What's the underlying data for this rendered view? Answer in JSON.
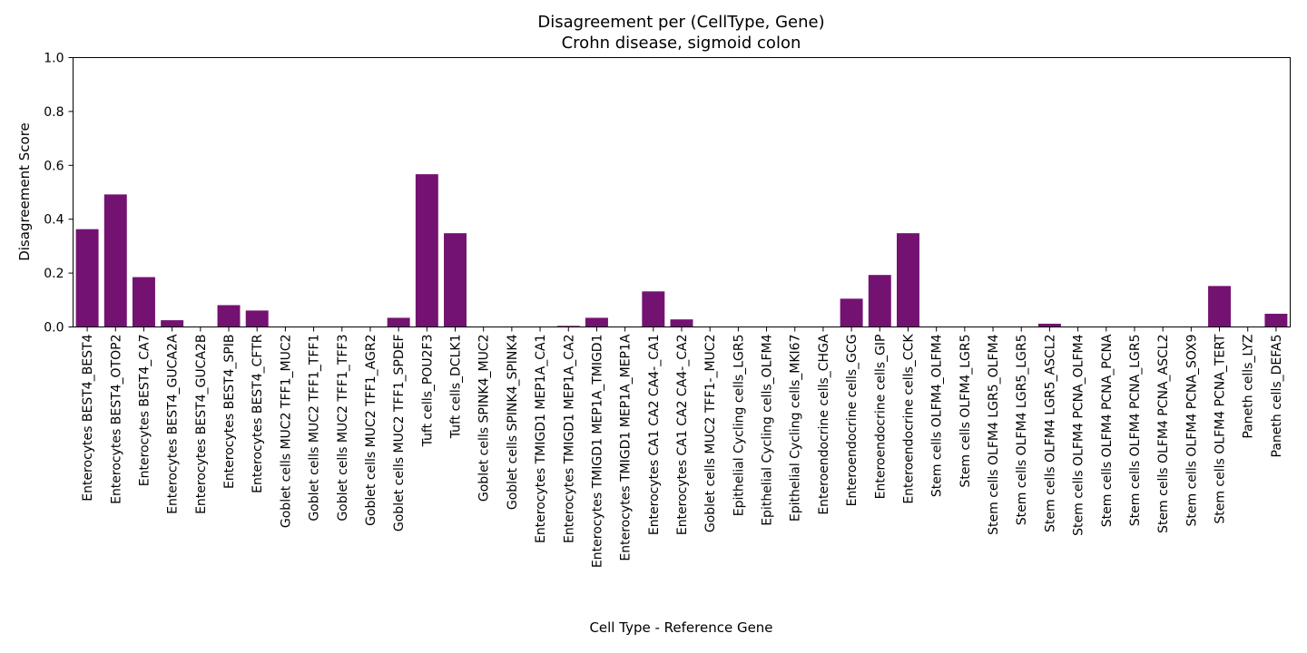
{
  "chart_data": {
    "type": "bar",
    "title": "Disagreement per (CellType, Gene)",
    "subtitle": "Crohn disease, sigmoid colon",
    "xlabel": "Cell Type - Reference Gene",
    "ylabel": "Disagreement Score",
    "ylim": [
      0,
      1.0
    ],
    "yticks": [
      "0.0",
      "0.2",
      "0.4",
      "0.6",
      "0.8",
      "1.0"
    ],
    "bar_color": "#741272",
    "grid": false,
    "legend": "none",
    "categories": [
      "Enterocytes BEST4_BEST4",
      "Enterocytes BEST4_OTOP2",
      "Enterocytes BEST4_CA7",
      "Enterocytes BEST4_GUCA2A",
      "Enterocytes BEST4_GUCA2B",
      "Enterocytes BEST4_SPIB",
      "Enterocytes BEST4_CFTR",
      "Goblet cells MUC2 TFF1_MUC2",
      "Goblet cells MUC2 TFF1_TFF1",
      "Goblet cells MUC2 TFF1_TFF3",
      "Goblet cells MUC2 TFF1_AGR2",
      "Goblet cells MUC2 TFF1_SPDEF",
      "Tuft cells_POU2F3",
      "Tuft cells_DCLK1",
      "Goblet cells SPINK4_MUC2",
      "Goblet cells SPINK4_SPINK4",
      "Enterocytes TMIGD1 MEP1A_CA1",
      "Enterocytes TMIGD1 MEP1A_CA2",
      "Enterocytes TMIGD1 MEP1A_TMIGD1",
      "Enterocytes TMIGD1 MEP1A_MEP1A",
      "Enterocytes CA1 CA2 CA4-_CA1",
      "Enterocytes CA1 CA2 CA4-_CA2",
      "Goblet cells MUC2 TFF1-_MUC2",
      "Epithelial Cycling cells_LGR5",
      "Epithelial Cycling cells_OLFM4",
      "Epithelial Cycling cells_MKI67",
      "Enteroendocrine cells_CHGA",
      "Enteroendocrine cells_GCG",
      "Enteroendocrine cells_GIP",
      "Enteroendocrine cells_CCK",
      "Stem cells OLFM4_OLFM4",
      "Stem cells OLFM4_LGR5",
      "Stem cells OLFM4 LGR5_OLFM4",
      "Stem cells OLFM4 LGR5_LGR5",
      "Stem cells OLFM4 LGR5_ASCL2",
      "Stem cells OLFM4 PCNA_OLFM4",
      "Stem cells OLFM4 PCNA_PCNA",
      "Stem cells OLFM4 PCNA_LGR5",
      "Stem cells OLFM4 PCNA_ASCL2",
      "Stem cells OLFM4 PCNA_SOX9",
      "Stem cells OLFM4 PCNA_TERT",
      "Paneth cells_LYZ",
      "Paneth cells_DEFA5"
    ],
    "values": [
      0.363,
      0.492,
      0.185,
      0.025,
      0.0,
      0.081,
      0.061,
      0.0,
      0.0,
      0.0,
      0.0,
      0.034,
      0.567,
      0.348,
      0.0,
      0.0,
      0.0,
      0.004,
      0.034,
      0.0,
      0.132,
      0.028,
      0.0,
      0.0,
      0.0,
      0.0,
      0.0,
      0.105,
      0.193,
      0.348,
      0.0,
      0.0,
      0.0,
      0.0,
      0.012,
      0.0,
      0.0,
      0.0,
      0.0,
      0.0,
      0.152,
      0.0,
      0.049
    ]
  }
}
